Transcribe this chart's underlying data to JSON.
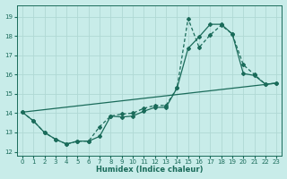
{
  "xlabel": "Humidex (Indice chaleur)",
  "bg_color": "#c8ece9",
  "grid_color": "#b0d8d4",
  "line_color": "#1a6b5a",
  "xlim": [
    -0.5,
    23.5
  ],
  "ylim": [
    11.8,
    19.6
  ],
  "yticks": [
    12,
    13,
    14,
    15,
    16,
    17,
    18,
    19
  ],
  "xticks": [
    0,
    1,
    2,
    3,
    4,
    5,
    6,
    7,
    8,
    9,
    10,
    11,
    12,
    13,
    14,
    15,
    16,
    17,
    18,
    19,
    20,
    21,
    22,
    23
  ],
  "line1_x": [
    0,
    1,
    2,
    3,
    4,
    5,
    6,
    7,
    8,
    9,
    10,
    11,
    12,
    13,
    14,
    15,
    16,
    17,
    18,
    19,
    20,
    21,
    22,
    23
  ],
  "line1_y": [
    14.05,
    13.6,
    13.0,
    12.65,
    12.4,
    12.55,
    12.55,
    12.8,
    13.85,
    13.8,
    13.85,
    14.1,
    14.3,
    14.3,
    15.3,
    17.35,
    17.95,
    18.6,
    18.6,
    18.1,
    16.05,
    15.95,
    15.5,
    15.55
  ],
  "line2_x": [
    0,
    1,
    2,
    3,
    4,
    5,
    6,
    7,
    8,
    9,
    10,
    11,
    12,
    13,
    14,
    15,
    16,
    17,
    18,
    19,
    20,
    21,
    22,
    23
  ],
  "line2_y": [
    14.05,
    13.6,
    13.0,
    12.65,
    12.4,
    12.55,
    12.55,
    13.3,
    13.85,
    13.95,
    14.0,
    14.25,
    14.4,
    14.4,
    15.3,
    18.9,
    17.4,
    18.05,
    18.55,
    18.1,
    16.5,
    16.0,
    15.5,
    15.55
  ],
  "line3_x": [
    0,
    23
  ],
  "line3_y": [
    14.05,
    15.55
  ]
}
